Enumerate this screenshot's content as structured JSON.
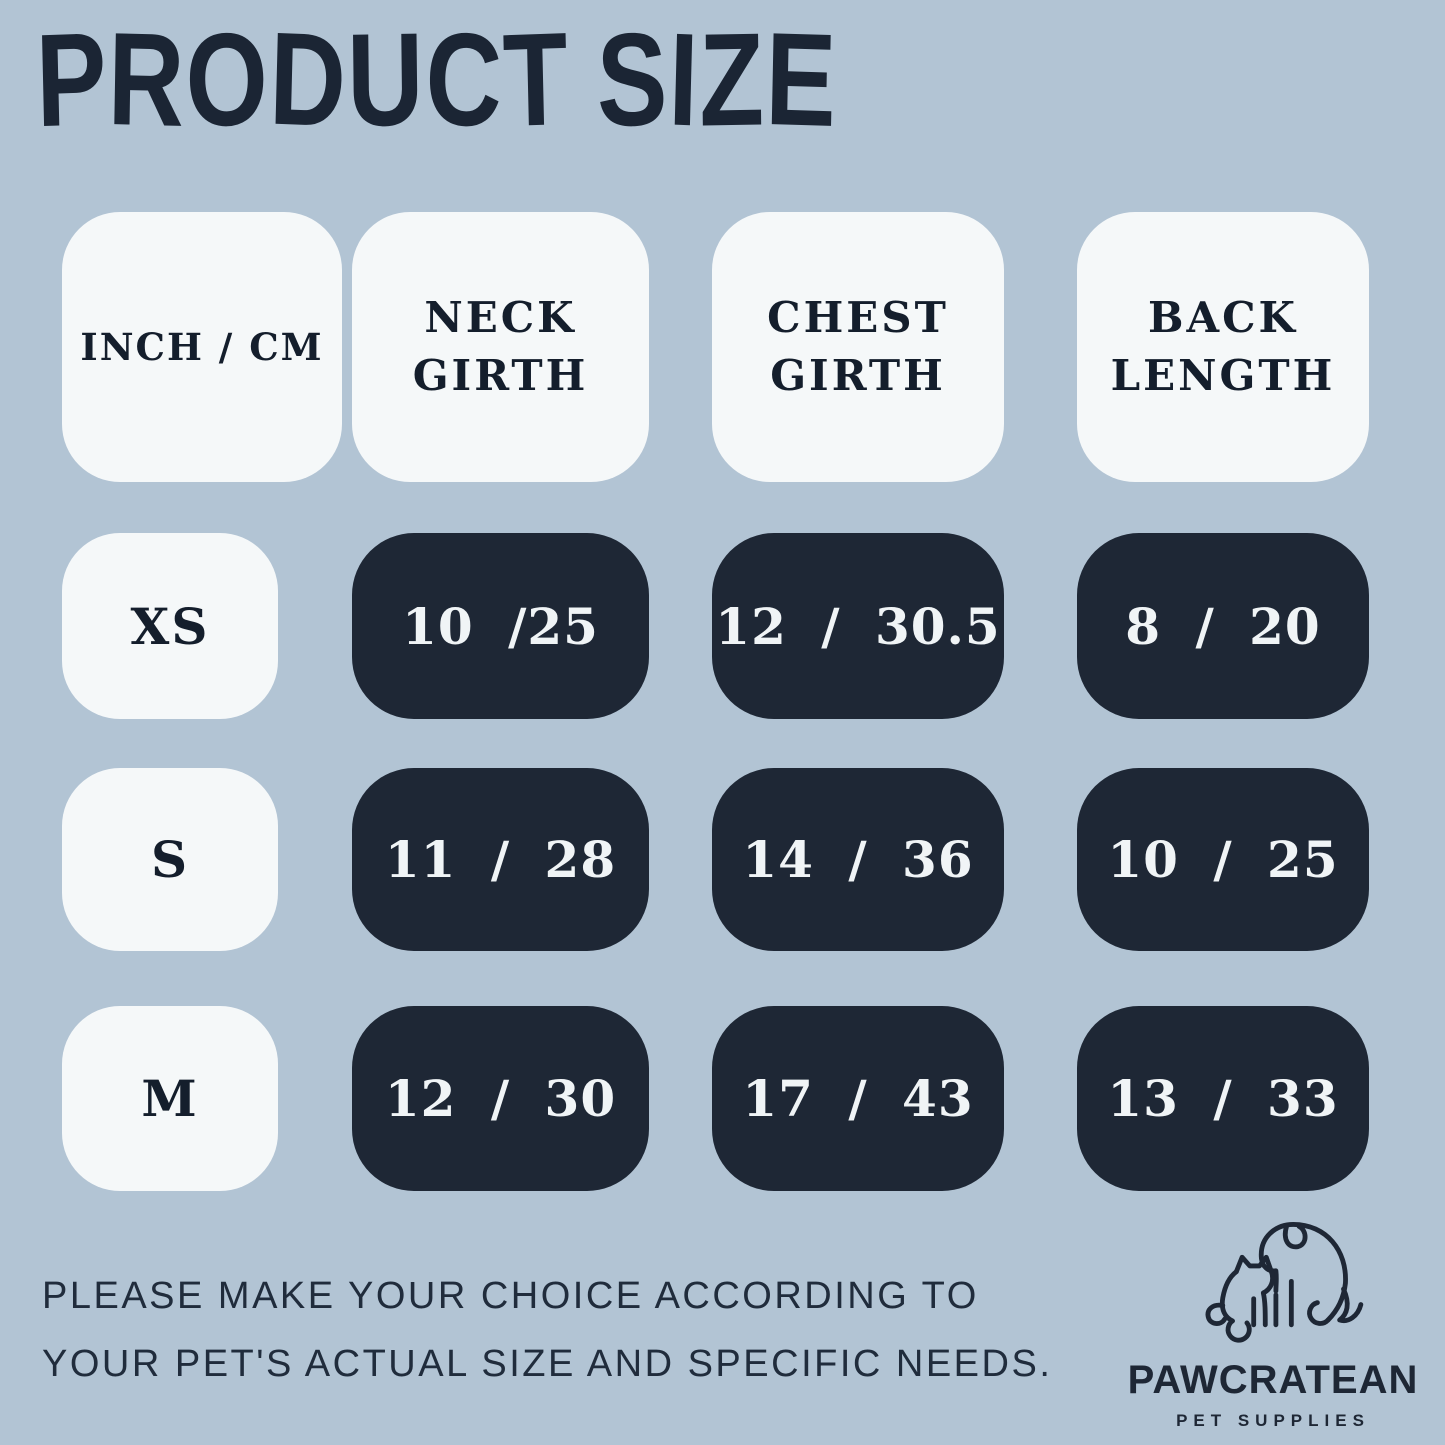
{
  "title": "PRODUCT SIZE",
  "chart_data": {
    "type": "table",
    "title": "PRODUCT SIZE",
    "units": "INCH / CM",
    "columns": [
      "INCH / CM",
      "NECK GIRTH",
      "CHEST GIRTH",
      "BACK LENGTH"
    ],
    "rows": [
      [
        "XS",
        "10 /25",
        "12 / 30.5",
        "8 / 20"
      ],
      [
        "S",
        "11 / 28",
        "14 / 36",
        "10 / 25"
      ],
      [
        "M",
        "12 / 30",
        "17 / 43",
        "13 / 33"
      ]
    ]
  },
  "footer": {
    "note_lines": [
      "PLEASE MAKE YOUR CHOICE ACCORDING TO",
      "YOUR PET'S ACTUAL SIZE AND SPECIFIC NEEDS."
    ],
    "brand_name": "PAWCRATEAN",
    "brand_tagline": "PET SUPPLIES",
    "logo_icon": "dog-and-cat-line-art-icon"
  },
  "colors": {
    "background": "#b2c4d4",
    "light_cell": "#f5f8f9",
    "dark_cell": "#1e2735",
    "dark_text": "#1b2534",
    "light_text": "#f0f4f6"
  }
}
